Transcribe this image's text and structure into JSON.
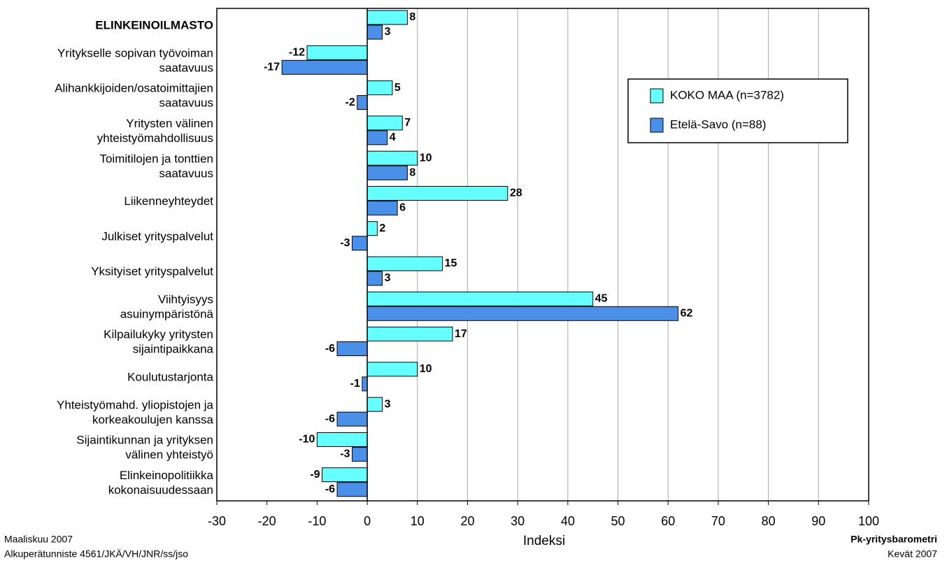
{
  "chart_data": {
    "type": "barh",
    "categories": [
      [
        "ELINKEINOILMASTO"
      ],
      [
        "Yritykselle sopivan työvoiman",
        "saatavuus"
      ],
      [
        "Alihankkijoiden/osatoimittajien",
        "saatavuus"
      ],
      [
        "Yritysten välinen",
        "yhteistyömahdollisuus"
      ],
      [
        "Toimitilojen ja tonttien",
        "saatavuus"
      ],
      [
        "Liikenneyhteydet"
      ],
      [
        "Julkiset yrityspalvelut"
      ],
      [
        "Yksityiset yrityspalvelut"
      ],
      [
        "Viihtyisyys",
        "asuinympäristönä"
      ],
      [
        "Kilpailukyky yritysten",
        "sijaintipaikkana"
      ],
      [
        "Koulutustarjonta"
      ],
      [
        "Yhteistyömahd. yliopistojen ja",
        "korkeakoulujen kanssa"
      ],
      [
        "Sijaintikunnan ja yrityksen",
        "välinen yhteistyö"
      ],
      [
        "Elinkeinopolitiikka",
        "kokonaisuudessaan"
      ]
    ],
    "series": [
      {
        "name": "KOKO MAA (n=3782)",
        "color": "#66ffff",
        "values": [
          8,
          -12,
          5,
          7,
          10,
          28,
          2,
          15,
          45,
          17,
          10,
          3,
          -10,
          -9
        ]
      },
      {
        "name": "Etelä-Savo (n=88)",
        "color": "#4a90e8",
        "values": [
          3,
          -17,
          -2,
          4,
          8,
          6,
          -3,
          3,
          62,
          -6,
          -1,
          -6,
          -3,
          -6
        ]
      }
    ],
    "xlim": [
      -30,
      100
    ],
    "xticks": [
      -30,
      -20,
      -10,
      0,
      10,
      20,
      30,
      40,
      50,
      60,
      70,
      80,
      90,
      100
    ],
    "xlabel": "Indeksi",
    "grid": true,
    "legend": "upper right",
    "footer_left": [
      "Maaliskuu 2007",
      "Alkuperätunniste 4561/JKÄ/VH/JNR/ss/jso"
    ],
    "footer_right": [
      "Pk-yritysbarometri",
      "Kevät 2007"
    ]
  }
}
